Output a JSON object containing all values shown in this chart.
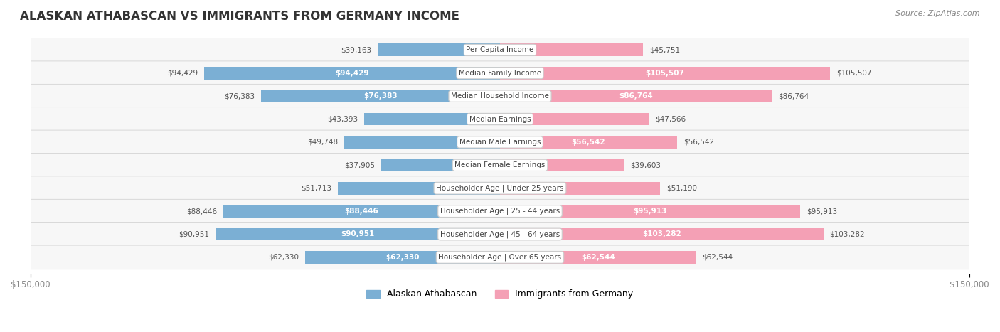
{
  "title": "ALASKAN ATHABASCAN VS IMMIGRANTS FROM GERMANY INCOME",
  "source": "Source: ZipAtlas.com",
  "categories": [
    "Per Capita Income",
    "Median Family Income",
    "Median Household Income",
    "Median Earnings",
    "Median Male Earnings",
    "Median Female Earnings",
    "Householder Age | Under 25 years",
    "Householder Age | 25 - 44 years",
    "Householder Age | 45 - 64 years",
    "Householder Age | Over 65 years"
  ],
  "alaskan": [
    39163,
    94429,
    76383,
    43393,
    49748,
    37905,
    51713,
    88446,
    90951,
    62330
  ],
  "germany": [
    45751,
    105507,
    86764,
    47566,
    56542,
    39603,
    51190,
    95913,
    103282,
    62544
  ],
  "max_val": 150000,
  "alaskan_color": "#7bafd4",
  "alaskan_color_dark": "#5b9dc9",
  "germany_color": "#f4a0b5",
  "germany_color_dark": "#e8799a",
  "label_color_light": "#ffffff",
  "label_color_dark": "#555555",
  "bar_height": 0.55,
  "bg_color": "#f5f5f5",
  "row_bg_light": "#fafafa",
  "row_bg_dark": "#f0f0f0",
  "title_color": "#333333",
  "axis_label_color": "#888888",
  "legend_alaskan": "Alaskan Athabascan",
  "legend_germany": "Immigrants from Germany"
}
